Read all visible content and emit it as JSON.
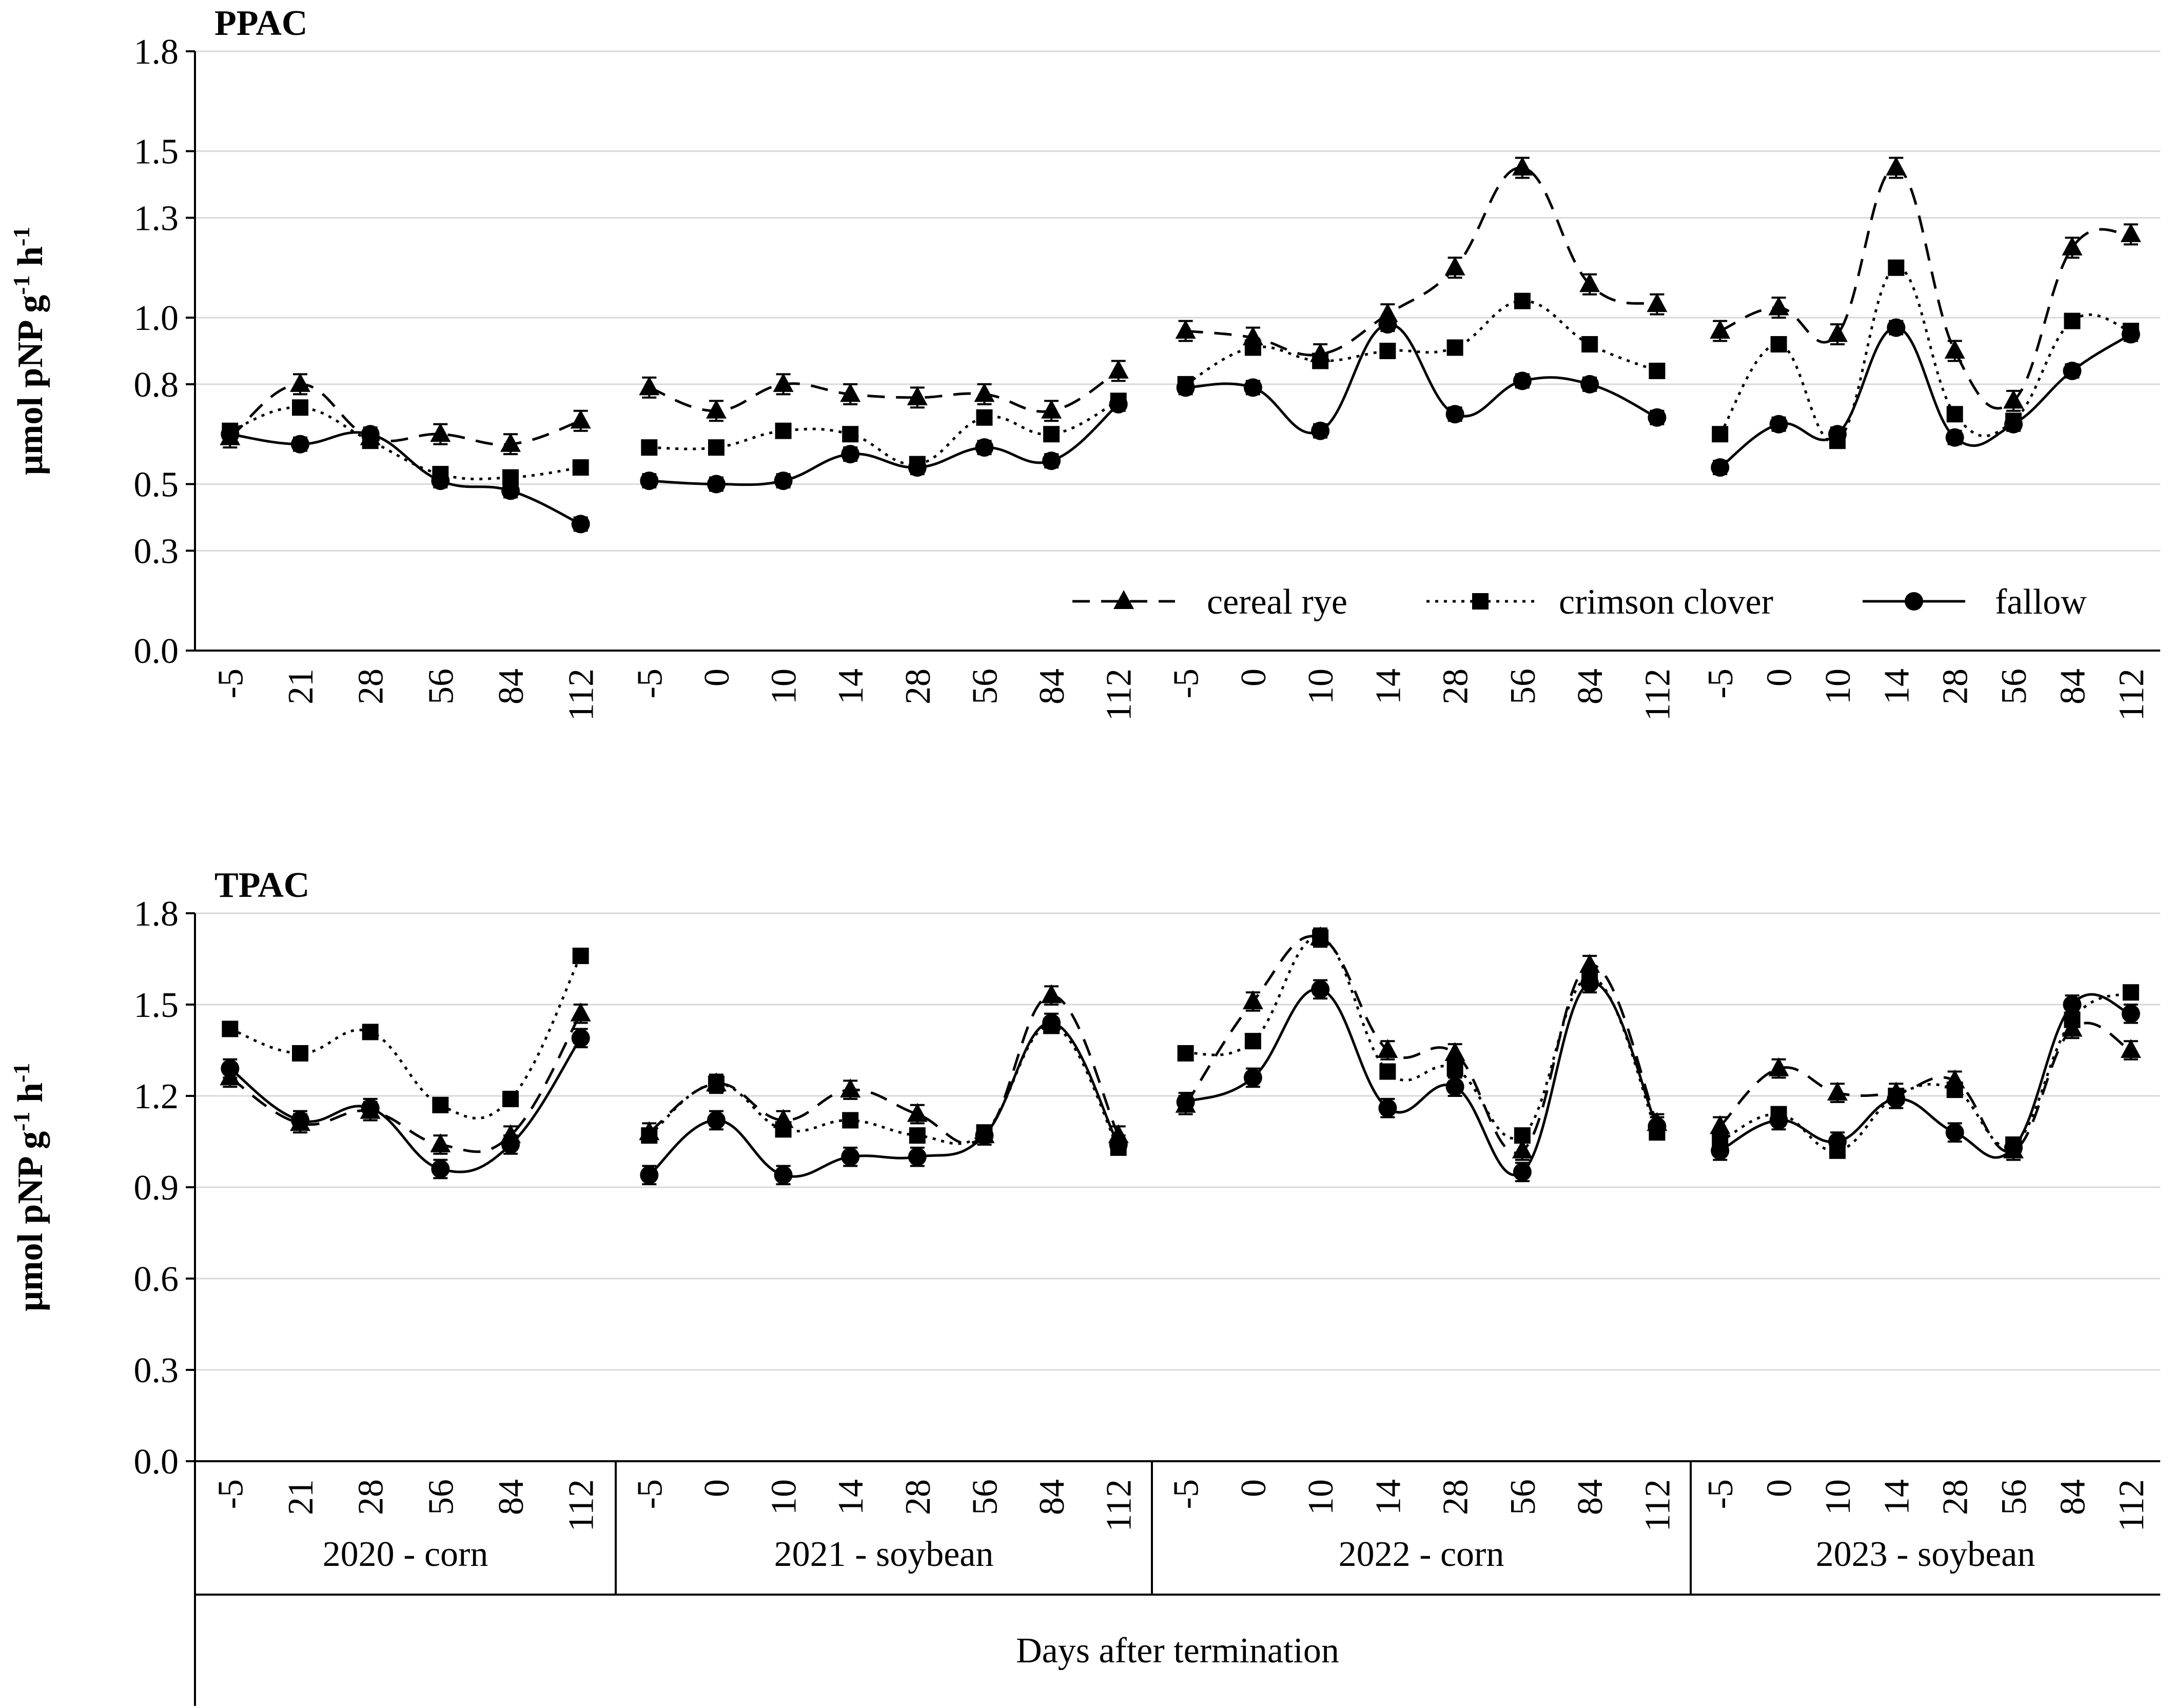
{
  "chart_data": [
    {
      "type": "line",
      "title": "PPAC",
      "ylabel": "µmol pNP g-1 h-1",
      "ylim": [
        0.0,
        1.8
      ],
      "yticks": [
        "0.0",
        "0.3",
        "0.5",
        "0.8",
        "1.0",
        "1.3",
        "1.5",
        "1.8"
      ],
      "groups": [
        {
          "x": [
            "-5",
            "21",
            "28",
            "56",
            "84",
            "112"
          ]
        },
        {
          "x": [
            "-5",
            "0",
            "10",
            "14",
            "28",
            "56",
            "84",
            "112"
          ]
        },
        {
          "x": [
            "-5",
            "0",
            "10",
            "14",
            "28",
            "56",
            "84",
            "112"
          ]
        },
        {
          "x": [
            "-5",
            "0",
            "10",
            "14",
            "28",
            "56",
            "84",
            "112"
          ]
        }
      ],
      "series": [
        {
          "name": "cereal rye",
          "marker": "triangle",
          "dash": "dashed",
          "values": [
            [
              0.64,
              0.8,
              0.64,
              0.65,
              0.62,
              0.69
            ],
            [
              0.79,
              0.72,
              0.8,
              0.77,
              0.76,
              0.77,
              0.72,
              0.84
            ],
            [
              0.96,
              0.94,
              0.89,
              1.01,
              1.15,
              1.45,
              1.1,
              1.04
            ],
            [
              0.96,
              1.03,
              0.95,
              1.45,
              0.9,
              0.75,
              1.21,
              1.25
            ]
          ],
          "errors": [
            [
              0.03,
              0.03,
              0.02,
              0.03,
              0.03,
              0.03
            ],
            [
              0.03,
              0.03,
              0.03,
              0.03,
              0.03,
              0.03,
              0.03,
              0.03
            ],
            [
              0.03,
              0.03,
              0.03,
              0.03,
              0.03,
              0.03,
              0.03,
              0.03
            ],
            [
              0.03,
              0.03,
              0.03,
              0.03,
              0.03,
              0.03,
              0.03,
              0.03
            ]
          ]
        },
        {
          "name": "crimson clover",
          "marker": "square",
          "dash": "dotted",
          "values": [
            [
              0.66,
              0.73,
              0.63,
              0.53,
              0.52,
              0.55
            ],
            [
              0.61,
              0.61,
              0.66,
              0.65,
              0.56,
              0.7,
              0.65,
              0.75
            ],
            [
              0.8,
              0.91,
              0.87,
              0.9,
              0.91,
              1.05,
              0.92,
              0.84
            ],
            [
              0.65,
              0.92,
              0.63,
              1.15,
              0.71,
              0.69,
              0.99,
              0.96
            ]
          ],
          "errors": [
            [
              0.02,
              0.02,
              0.02,
              0.02,
              0.02,
              0.02
            ],
            [
              0.02,
              0.02,
              0.02,
              0.02,
              0.02,
              0.02,
              0.02,
              0.02
            ],
            [
              0.02,
              0.02,
              0.02,
              0.02,
              0.02,
              0.02,
              0.02,
              0.02
            ],
            [
              0.02,
              0.02,
              0.02,
              0.02,
              0.02,
              0.02,
              0.02,
              0.02
            ]
          ]
        },
        {
          "name": "fallow",
          "marker": "circle",
          "dash": "solid",
          "values": [
            [
              0.65,
              0.62,
              0.65,
              0.51,
              0.48,
              0.38
            ],
            [
              0.51,
              0.5,
              0.51,
              0.59,
              0.55,
              0.61,
              0.57,
              0.74
            ],
            [
              0.79,
              0.79,
              0.66,
              0.98,
              0.71,
              0.81,
              0.8,
              0.7
            ],
            [
              0.55,
              0.68,
              0.65,
              0.97,
              0.64,
              0.68,
              0.84,
              0.95
            ]
          ],
          "errors": [
            [
              0.02,
              0.02,
              0.02,
              0.02,
              0.02,
              0.02
            ],
            [
              0.02,
              0.02,
              0.02,
              0.02,
              0.02,
              0.02,
              0.02,
              0.02
            ],
            [
              0.02,
              0.02,
              0.02,
              0.02,
              0.02,
              0.02,
              0.02,
              0.02
            ],
            [
              0.02,
              0.02,
              0.02,
              0.02,
              0.02,
              0.02,
              0.02,
              0.02
            ]
          ]
        }
      ],
      "legend": {
        "placement": "bottom-right",
        "entries": [
          "cereal rye",
          "crimson clover",
          "fallow"
        ]
      },
      "grid": true
    },
    {
      "type": "line",
      "title": "TPAC",
      "ylabel": "µmol pNP g-1 h-1",
      "xlabel": "Days after termination",
      "ylim": [
        0.0,
        1.8
      ],
      "yticks": [
        "0.0",
        "0.3",
        "0.6",
        "0.9",
        "1.2",
        "1.5",
        "1.8"
      ],
      "groups": [
        {
          "name": "2020 - corn",
          "x": [
            "-5",
            "21",
            "28",
            "56",
            "84",
            "112"
          ]
        },
        {
          "name": "2021 - soybean",
          "x": [
            "-5",
            "0",
            "10",
            "14",
            "28",
            "56",
            "84",
            "112"
          ]
        },
        {
          "name": "2022 - corn",
          "x": [
            "-5",
            "0",
            "10",
            "14",
            "28",
            "56",
            "84",
            "112"
          ]
        },
        {
          "name": "2023 - soybean",
          "x": [
            "-5",
            "0",
            "10",
            "14",
            "28",
            "56",
            "84",
            "112"
          ]
        }
      ],
      "series": [
        {
          "name": "cereal rye",
          "marker": "triangle",
          "dash": "dashed",
          "values": [
            [
              1.26,
              1.11,
              1.15,
              1.04,
              1.07,
              1.47
            ],
            [
              1.08,
              1.24,
              1.12,
              1.22,
              1.14,
              1.07,
              1.53,
              1.07
            ],
            [
              1.17,
              1.51,
              1.72,
              1.35,
              1.34,
              1.02,
              1.63,
              1.11
            ],
            [
              1.1,
              1.29,
              1.21,
              1.21,
              1.25,
              1.02,
              1.42,
              1.35
            ]
          ],
          "errors": [
            [
              0.03,
              0.03,
              0.03,
              0.03,
              0.03,
              0.03
            ],
            [
              0.03,
              0.03,
              0.03,
              0.03,
              0.03,
              0.03,
              0.03,
              0.03
            ],
            [
              0.03,
              0.03,
              0.03,
              0.03,
              0.03,
              0.03,
              0.03,
              0.03
            ],
            [
              0.03,
              0.03,
              0.03,
              0.03,
              0.03,
              0.03,
              0.03,
              0.03
            ]
          ]
        },
        {
          "name": "crimson clover",
          "marker": "square",
          "dash": "dotted",
          "values": [
            [
              1.42,
              1.34,
              1.41,
              1.17,
              1.19,
              1.66
            ],
            [
              1.07,
              1.24,
              1.09,
              1.12,
              1.07,
              1.08,
              1.43,
              1.03
            ],
            [
              1.34,
              1.38,
              1.72,
              1.28,
              1.29,
              1.07,
              1.59,
              1.08
            ],
            [
              1.05,
              1.14,
              1.02,
              1.2,
              1.22,
              1.04,
              1.45,
              1.54
            ]
          ],
          "errors": [
            [
              0.02,
              0.02,
              0.02,
              0.02,
              0.02,
              0.02
            ],
            [
              0.02,
              0.02,
              0.02,
              0.02,
              0.02,
              0.02,
              0.02,
              0.02
            ],
            [
              0.02,
              0.02,
              0.02,
              0.02,
              0.02,
              0.02,
              0.02,
              0.02
            ],
            [
              0.02,
              0.02,
              0.02,
              0.02,
              0.02,
              0.02,
              0.02,
              0.02
            ]
          ]
        },
        {
          "name": "fallow",
          "marker": "circle",
          "dash": "solid",
          "values": [
            [
              1.29,
              1.12,
              1.16,
              0.96,
              1.04,
              1.39
            ],
            [
              0.94,
              1.12,
              0.94,
              1.0,
              1.0,
              1.07,
              1.44,
              1.04
            ],
            [
              1.18,
              1.26,
              1.55,
              1.16,
              1.23,
              0.95,
              1.57,
              1.1
            ],
            [
              1.02,
              1.12,
              1.05,
              1.19,
              1.08,
              1.03,
              1.5,
              1.47
            ]
          ],
          "errors": [
            [
              0.03,
              0.03,
              0.03,
              0.03,
              0.03,
              0.03
            ],
            [
              0.03,
              0.03,
              0.03,
              0.03,
              0.03,
              0.03,
              0.03,
              0.03
            ],
            [
              0.03,
              0.03,
              0.03,
              0.03,
              0.03,
              0.03,
              0.03,
              0.03
            ],
            [
              0.03,
              0.03,
              0.03,
              0.03,
              0.03,
              0.03,
              0.03,
              0.03
            ]
          ]
        }
      ],
      "grid": true
    }
  ]
}
